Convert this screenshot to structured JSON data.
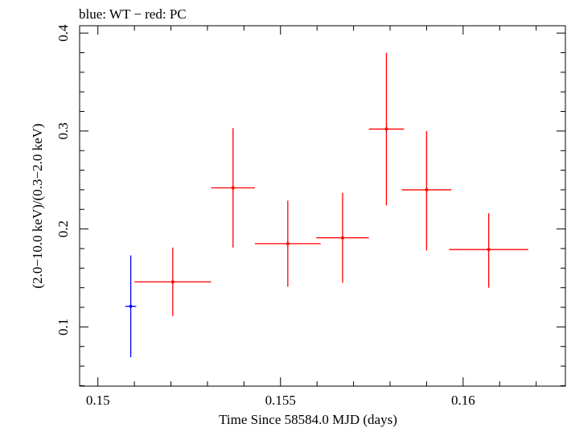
{
  "chart_data": {
    "type": "scatter",
    "title": "blue: WT − red: PC",
    "xlabel": "Time Since 58584.0 MJD (days)",
    "ylabel": "(2.0−10.0 keV)/(0.3−2.0 keV)",
    "xlim": [
      0.1495,
      0.1628
    ],
    "ylim": [
      0.0395,
      0.4075
    ],
    "xticks": [
      {
        "value": 0.15,
        "label": "0.15"
      },
      {
        "value": 0.155,
        "label": "0.155"
      },
      {
        "value": 0.16,
        "label": "0.16"
      }
    ],
    "yticks": [
      {
        "value": 0.1,
        "label": "0.1"
      },
      {
        "value": 0.2,
        "label": "0.2"
      },
      {
        "value": 0.3,
        "label": "0.3"
      },
      {
        "value": 0.4,
        "label": "0.4"
      }
    ],
    "x_minor_step": 0.001,
    "y_minor_step": 0.02,
    "series": [
      {
        "name": "WT",
        "color": "#0000ff",
        "points": [
          {
            "x": 0.1509,
            "xerr": 0.00015,
            "y": 0.121,
            "ylo": 0.069,
            "yhi": 0.173
          }
        ]
      },
      {
        "name": "PC",
        "color": "#ff0000",
        "points": [
          {
            "x": 0.15205,
            "xerr": 0.00105,
            "y": 0.146,
            "ylo": 0.111,
            "yhi": 0.181
          },
          {
            "x": 0.1537,
            "xerr": 0.0006,
            "y": 0.242,
            "ylo": 0.181,
            "yhi": 0.303
          },
          {
            "x": 0.1552,
            "xerr": 0.0009,
            "y": 0.185,
            "ylo": 0.141,
            "yhi": 0.229
          },
          {
            "x": 0.1567,
            "xerr": 0.00072,
            "y": 0.191,
            "ylo": 0.145,
            "yhi": 0.237
          },
          {
            "x": 0.1579,
            "xerr": 0.00048,
            "y": 0.302,
            "ylo": 0.224,
            "yhi": 0.38
          },
          {
            "x": 0.159,
            "xerr": 0.00068,
            "y": 0.24,
            "ylo": 0.178,
            "yhi": 0.3
          },
          {
            "x": 0.1607,
            "xerr": 0.00108,
            "y": 0.179,
            "ylo": 0.14,
            "yhi": 0.216
          }
        ]
      }
    ]
  }
}
